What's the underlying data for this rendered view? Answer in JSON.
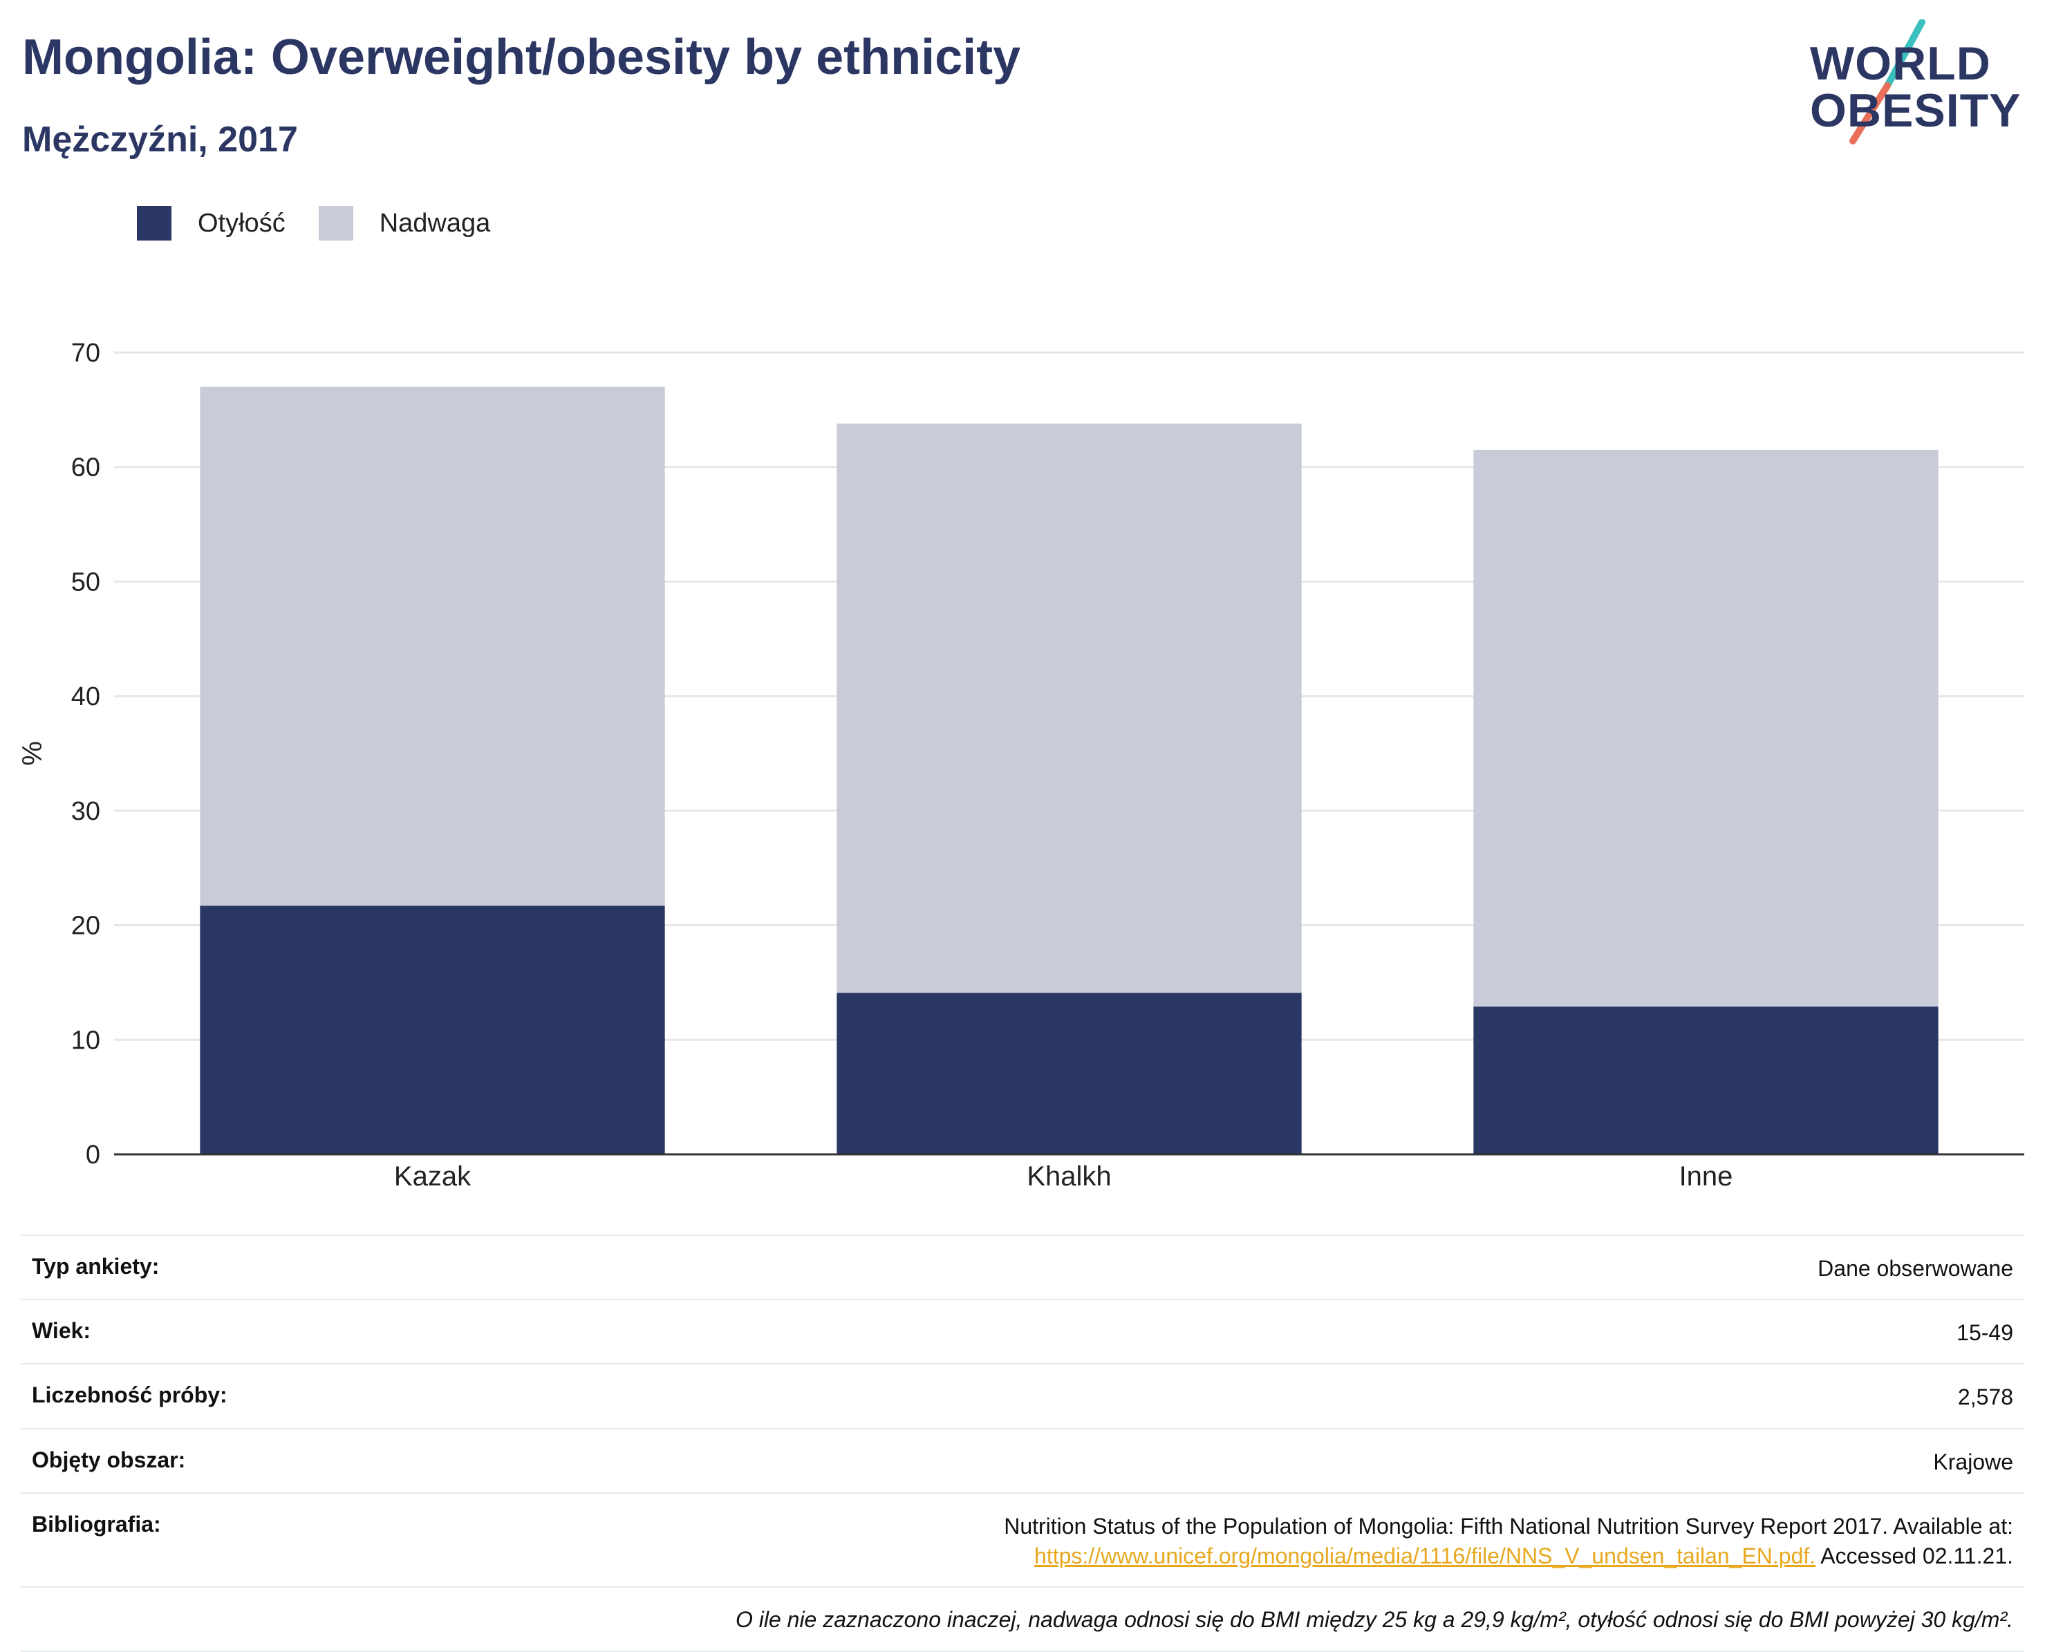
{
  "header": {
    "title": "Mongolia: Overweight/obesity by ethnicity",
    "subtitle": "Mężczyźni, 2017"
  },
  "logo": {
    "line1": "WORLD",
    "line2": "OBESITY",
    "colors": {
      "text": "#2b3663",
      "slash_top": "#3bbfbf",
      "slash_bottom": "#e8705a"
    }
  },
  "colors": {
    "obesity": "#2a3663",
    "overweight": "#c9ccd8",
    "grid": "#e6e6e6",
    "axis": "#333333"
  },
  "chart_data": {
    "type": "bar",
    "stacked": true,
    "categories": [
      "Kazak",
      "Khalkh",
      "Inne"
    ],
    "series": [
      {
        "name": "Otyłość",
        "values": [
          21.7,
          14.1,
          12.9
        ]
      },
      {
        "name": "Nadwaga",
        "values": [
          45.3,
          49.7,
          48.6
        ]
      }
    ],
    "totals": [
      67.0,
      63.8,
      61.5
    ],
    "ylabel": "%",
    "xlabel": "",
    "ylim": [
      0,
      70
    ],
    "yticks": [
      0,
      10,
      20,
      30,
      40,
      50,
      60,
      70
    ],
    "grid": true,
    "legend_position": "top-left"
  },
  "info": {
    "rows": [
      {
        "label": "Typ ankiety:",
        "value": "Dane obserwowane"
      },
      {
        "label": "Wiek:",
        "value": "15-49"
      },
      {
        "label": "Liczebność próby:",
        "value": "2,578"
      },
      {
        "label": "Objęty obszar:",
        "value": "Krajowe"
      }
    ],
    "bibliography": {
      "label": "Bibliografia:",
      "text": "Nutrition Status of the Population of Mongolia: Fifth National Nutrition Survey Report 2017. Available at:",
      "link": "https://www.unicef.org/mongolia/media/1116/file/NNS_V_undsen_tailan_EN.pdf.",
      "accessed": " Accessed 02.11.21."
    },
    "note": "O ile nie zaznaczono inaczej, nadwaga odnosi się do BMI między 25 kg a 29,9 kg/m², otyłość odnosi się do BMI powyżej 30 kg/m²."
  }
}
